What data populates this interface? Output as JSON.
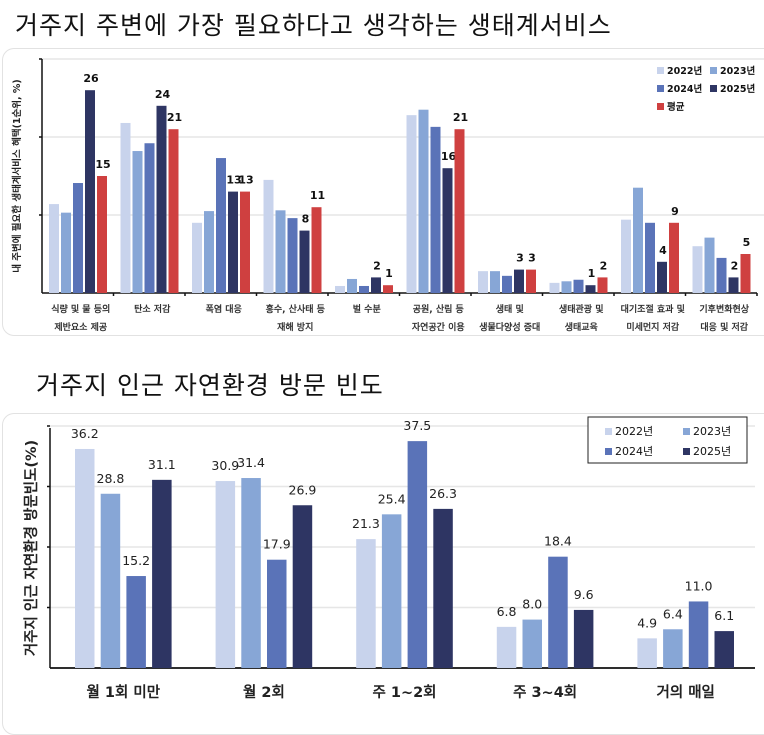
{
  "titles": {
    "section1": "거주지 주변에 가장 필요하다고 생각하는 생태계서비스",
    "section2": "거주지 인근 자연환경 방문 빈도"
  },
  "colors": {
    "y2022": "#c8d3ec",
    "y2023": "#87a6d6",
    "y2024": "#5a73b8",
    "y2025": "#2e3563",
    "avg": "#cf4040",
    "grid": "#e6e6e6",
    "axis": "#111111"
  },
  "chart_data": [
    {
      "type": "bar",
      "title": "거주지 주변에 가장 필요하다고 생각하는 생태계서비스",
      "xlabel": "",
      "ylabel": "내 주변에 필요한 생태계서비스 혜택(1순위, %)",
      "ylim": [
        0,
        30
      ],
      "grid": true,
      "gridlines": [
        10,
        20,
        30
      ],
      "legend_position": "top-right",
      "categories": [
        [
          "식량 및 물 등의",
          "제반요소 제공"
        ],
        [
          "탄소 저감"
        ],
        [
          "폭염 대응"
        ],
        [
          "홍수, 산사태 등",
          "재해 방지"
        ],
        [
          "벌 수분"
        ],
        [
          "공원, 산림 등",
          "자연공간 이용"
        ],
        [
          "생태 및",
          "생물다양성 증대"
        ],
        [
          "생태관광 및",
          "생태교육"
        ],
        [
          "대기조절 효과 및",
          "미세먼지 저감"
        ],
        [
          "기후변화현상",
          "대응 및 저감"
        ]
      ],
      "series": [
        {
          "name": "2022년",
          "color_key": "y2022",
          "values": [
            11.4,
            21.8,
            9.0,
            14.5,
            0.9,
            22.8,
            2.8,
            1.3,
            9.4,
            6.0
          ],
          "labels": [
            null,
            null,
            null,
            null,
            null,
            null,
            null,
            null,
            null,
            null
          ]
        },
        {
          "name": "2023년",
          "color_key": "y2023",
          "values": [
            10.3,
            18.2,
            10.5,
            10.6,
            1.8,
            23.5,
            2.8,
            1.5,
            13.5,
            7.1
          ],
          "labels": [
            null,
            null,
            null,
            null,
            null,
            null,
            null,
            null,
            null,
            null
          ]
        },
        {
          "name": "2024년",
          "color_key": "y2024",
          "values": [
            14.1,
            19.2,
            17.3,
            9.6,
            0.9,
            21.3,
            2.2,
            1.7,
            9.0,
            4.5
          ],
          "labels": [
            null,
            null,
            null,
            null,
            null,
            null,
            null,
            null,
            null,
            null
          ]
        },
        {
          "name": "2025년",
          "color_key": "y2025",
          "values": [
            26,
            24,
            13,
            8,
            2,
            16,
            3,
            1,
            4,
            2
          ],
          "labels": [
            "26",
            "24",
            "13",
            "8",
            "2",
            "16",
            "3",
            "1",
            "4",
            "2"
          ]
        },
        {
          "name": "평균",
          "color_key": "avg",
          "values": [
            15,
            21,
            13,
            11,
            1,
            21,
            3,
            2,
            9,
            5
          ],
          "labels": [
            "15",
            "21",
            "13",
            "11",
            "1",
            "21",
            "3",
            "2",
            "9",
            "5"
          ]
        }
      ],
      "legend": [
        "2022년",
        "2023년",
        "2024년",
        "2025년",
        "평균"
      ]
    },
    {
      "type": "bar",
      "title": "거주지 인근 자연환경 방문 빈도",
      "xlabel": "",
      "ylabel": "거주지 인근 자연환경 방문빈도(%)",
      "ylim": [
        0,
        40
      ],
      "grid": true,
      "gridlines": [
        10,
        20,
        30,
        40
      ],
      "legend_position": "top-right",
      "categories": [
        [
          "월 1회 미만"
        ],
        [
          "월 2회"
        ],
        [
          "주 1~2회"
        ],
        [
          "주 3~4회"
        ],
        [
          "거의 매일"
        ]
      ],
      "series": [
        {
          "name": "2022년",
          "color_key": "y2022",
          "values": [
            36.2,
            30.9,
            21.3,
            6.8,
            4.9
          ],
          "labels": [
            "36.2",
            "30.9",
            "21.3",
            "6.8",
            "4.9"
          ]
        },
        {
          "name": "2023년",
          "color_key": "y2023",
          "values": [
            28.8,
            31.4,
            25.4,
            8.0,
            6.4
          ],
          "labels": [
            "28.8",
            "31.4",
            "25.4",
            "8.0",
            "6.4"
          ]
        },
        {
          "name": "2024년",
          "color_key": "y2024",
          "values": [
            15.2,
            17.9,
            37.5,
            18.4,
            11.0
          ],
          "labels": [
            "15.2",
            "17.9",
            "37.5",
            "18.4",
            "11.0"
          ]
        },
        {
          "name": "2025년",
          "color_key": "y2025",
          "values": [
            31.1,
            26.9,
            26.3,
            9.6,
            6.1
          ],
          "labels": [
            "31.1",
            "26.9",
            "26.3",
            "9.6",
            "6.1"
          ]
        }
      ],
      "legend": [
        "2022년",
        "2023년",
        "2024년",
        "2025년"
      ]
    }
  ]
}
